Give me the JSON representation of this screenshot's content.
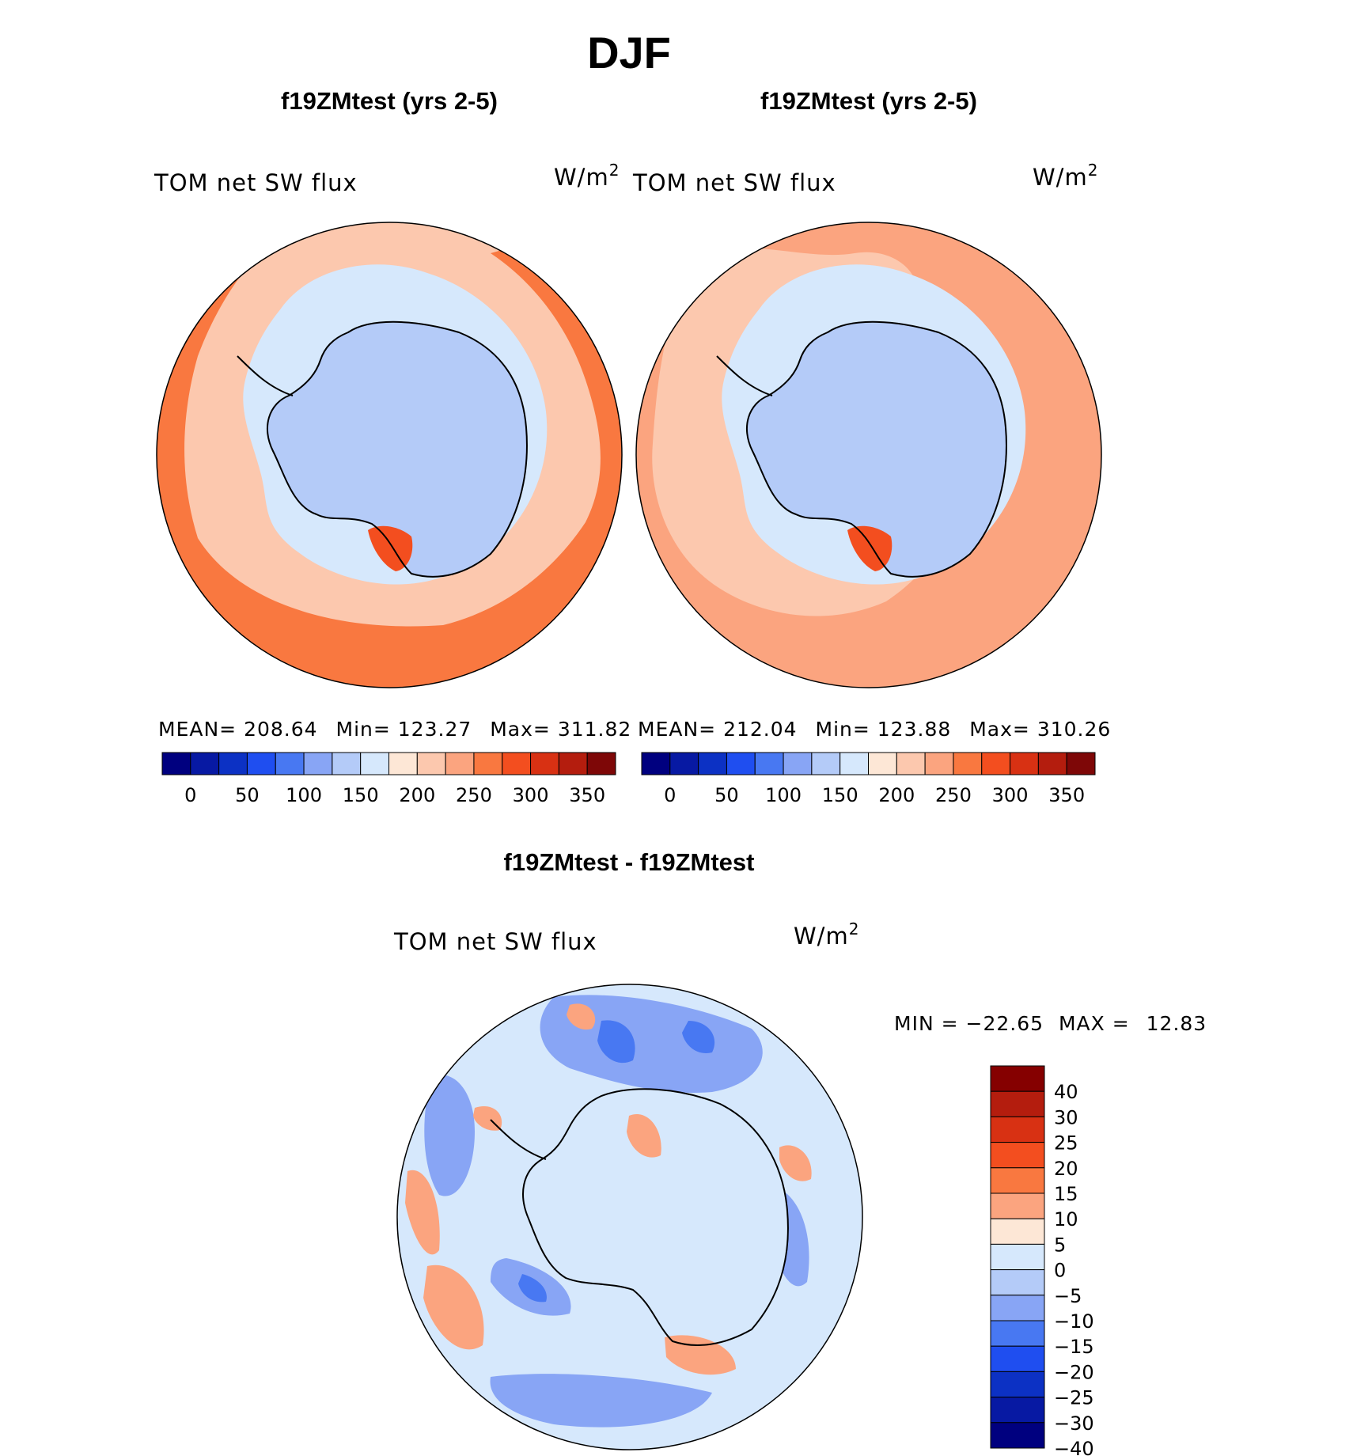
{
  "figure": {
    "title": "DJF"
  },
  "chart_data": [
    {
      "type": "heatmap",
      "projection": "south-polar-stereographic",
      "title": "f19ZMtest (yrs 2-5)",
      "variable_label": "TOM net SW flux",
      "units": "W/m",
      "units_exponent": "2",
      "stats": {
        "mean_label": "MEAN=",
        "mean": "208.64",
        "min_label": "Min=",
        "min": "123.27",
        "max_label": "Max=",
        "max": "311.82"
      },
      "colorbar": {
        "orientation": "horizontal",
        "ticks": [
          "0",
          "50",
          "100",
          "150",
          "200",
          "250",
          "300",
          "350"
        ],
        "colors": [
          "#00007f",
          "#0719a3",
          "#0c31c4",
          "#1f4ef0",
          "#4878f2",
          "#88a5f5",
          "#b4cbf8",
          "#d6e8fc",
          "#fde7d6",
          "#fcc8ae",
          "#fba47f",
          "#f97840",
          "#f34e1f",
          "#d83113",
          "#b41d0e",
          "#7e0707"
        ]
      },
      "regions": [
        {
          "name": "ocean-base",
          "level": 9
        },
        {
          "name": "band-250-300",
          "level": 11
        },
        {
          "name": "ring-150-200",
          "level": 7
        },
        {
          "name": "antarctica",
          "level": 6
        },
        {
          "name": "patch-300",
          "level": 12
        }
      ]
    },
    {
      "type": "heatmap",
      "projection": "south-polar-stereographic",
      "title": "f19ZMtest (yrs 2-5)",
      "variable_label": "TOM net SW flux",
      "units": "W/m",
      "units_exponent": "2",
      "stats": {
        "mean_label": "MEAN=",
        "mean": "212.04",
        "min_label": "Min=",
        "min": "123.88",
        "max_label": "Max=",
        "max": "310.26"
      },
      "colorbar": {
        "orientation": "horizontal",
        "ticks": [
          "0",
          "50",
          "100",
          "150",
          "200",
          "250",
          "300",
          "350"
        ],
        "colors": [
          "#00007f",
          "#0719a3",
          "#0c31c4",
          "#1f4ef0",
          "#4878f2",
          "#88a5f5",
          "#b4cbf8",
          "#d6e8fc",
          "#fde7d6",
          "#fcc8ae",
          "#fba47f",
          "#f97840",
          "#f34e1f",
          "#d83113",
          "#b41d0e",
          "#7e0707"
        ]
      },
      "regions": [
        {
          "name": "ocean-base",
          "level": 10
        },
        {
          "name": "band-200-250",
          "level": 9
        },
        {
          "name": "ring-150-200",
          "level": 7
        },
        {
          "name": "antarctica",
          "level": 6
        },
        {
          "name": "patch-300",
          "level": 12
        }
      ]
    },
    {
      "type": "heatmap",
      "projection": "south-polar-stereographic",
      "title": "f19ZMtest - f19ZMtest",
      "variable_label": "TOM net SW flux",
      "units": "W/m",
      "units_exponent": "2",
      "stats": {
        "min_label": "MIN =",
        "min": "−22.65",
        "max_label": "MAX =",
        "max": "12.83"
      },
      "colorbar": {
        "orientation": "vertical",
        "ticks": [
          "40",
          "30",
          "25",
          "20",
          "15",
          "10",
          "5",
          "0",
          "−5",
          "−10",
          "−15",
          "−20",
          "−25",
          "−30",
          "−40"
        ],
        "colors": [
          "#850000",
          "#b41d0e",
          "#d83113",
          "#f34e1f",
          "#f97840",
          "#fba47f",
          "#fde7d6",
          "#d6e8fc",
          "#b4cbf8",
          "#88a5f5",
          "#4878f2",
          "#1f4ef0",
          "#0c31c4",
          "#0719a3",
          "#00007f"
        ]
      },
      "regions": [
        {
          "name": "ocean-base",
          "level": 7
        },
        {
          "name": "antarctica",
          "level": 7
        },
        {
          "name": "negative-patches",
          "level": 9
        },
        {
          "name": "strong-negative-patches",
          "level": 10
        },
        {
          "name": "positive-patches",
          "level": 5
        }
      ]
    }
  ]
}
